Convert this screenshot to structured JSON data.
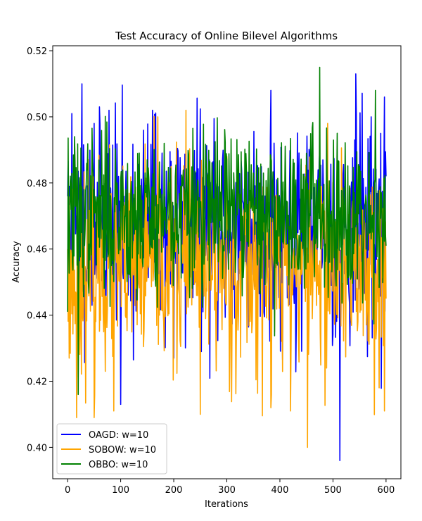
{
  "chart_data": {
    "type": "line",
    "title": "Test Accuracy of Online Bilevel Algorithms",
    "xlabel": "Iterations",
    "ylabel": "Accuracy",
    "xlim": [
      -28,
      628
    ],
    "ylim": [
      0.3905,
      0.5215
    ],
    "xticks": [
      0,
      100,
      200,
      300,
      400,
      500,
      600
    ],
    "yticks": [
      0.4,
      0.42,
      0.44,
      0.46,
      0.48,
      0.5,
      0.52
    ],
    "ytick_labels": [
      "0.40",
      "0.42",
      "0.44",
      "0.46",
      "0.48",
      "0.50",
      "0.52"
    ],
    "grid": false,
    "legend_position": "lower-left",
    "series": [
      {
        "name": "OAGD: w=10",
        "color": "#0000ff",
        "generator": {
          "seed": 11,
          "mean": 0.466,
          "spread": 0.016
        },
        "x": [
          0,
          3,
          8,
          27,
          50,
          78,
          100,
          150,
          160,
          200,
          300,
          383,
          400,
          450,
          513,
          543,
          590,
          597,
          600
        ],
        "y": [
          0.476,
          0.479,
          0.501,
          0.51,
          0.498,
          0.502,
          0.413,
          0.455,
          0.502,
          0.427,
          0.458,
          0.508,
          0.471,
          0.472,
          0.396,
          0.513,
          0.495,
          0.506,
          0.482
        ]
      },
      {
        "name": "SOBOW: w=10",
        "color": "#ffa500",
        "generator": {
          "seed": 23,
          "mean": 0.454,
          "spread": 0.015
        },
        "x": [
          0,
          3,
          17,
          50,
          87,
          170,
          223,
          250,
          300,
          383,
          420,
          452,
          490,
          550,
          597,
          600
        ],
        "y": [
          0.46,
          0.427,
          0.409,
          0.409,
          0.411,
          0.5,
          0.502,
          0.41,
          0.488,
          0.412,
          0.411,
          0.4,
          0.498,
          0.46,
          0.411,
          0.445
        ]
      },
      {
        "name": "OBBO: w=10",
        "color": "#008000",
        "generator": {
          "seed": 37,
          "mean": 0.471,
          "spread": 0.012
        },
        "x": [
          0,
          20,
          50,
          100,
          150,
          200,
          250,
          300,
          350,
          400,
          450,
          475,
          500,
          550,
          580,
          600
        ],
        "y": [
          0.441,
          0.416,
          0.478,
          0.481,
          0.487,
          0.465,
          0.474,
          0.487,
          0.483,
          0.471,
          0.489,
          0.515,
          0.477,
          0.485,
          0.508,
          0.461
        ]
      }
    ]
  }
}
